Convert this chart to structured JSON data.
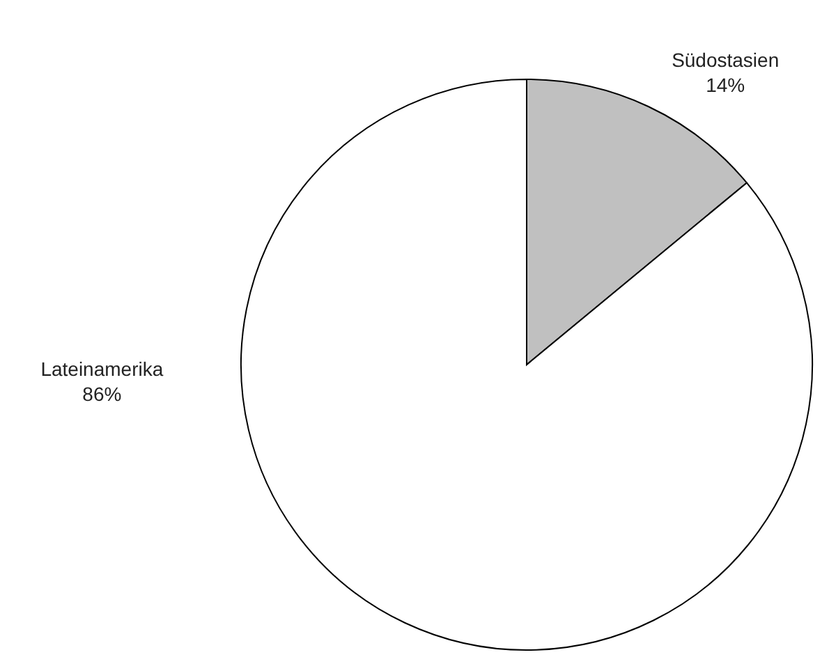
{
  "chart_data": {
    "type": "pie",
    "categories": [
      "Südostasien",
      "Lateinamerika"
    ],
    "values": [
      14,
      86
    ],
    "colors": [
      "#c0c0c0",
      "#ffffff"
    ],
    "value_labels": [
      "14%",
      "86%"
    ]
  }
}
